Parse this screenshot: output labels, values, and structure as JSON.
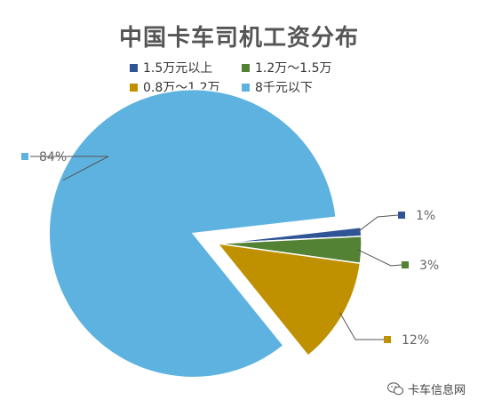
{
  "chart_data": {
    "type": "pie",
    "title": "中国卡车司机工资分布",
    "categories": [
      "1.5万元以上",
      "1.2万～1.5万",
      "0.8万～1.2万",
      "8千元以下"
    ],
    "values": [
      1,
      3,
      12,
      84
    ],
    "labels": [
      "1%",
      "3%",
      "12%",
      "84%"
    ],
    "colors": [
      "#2f5597",
      "#548235",
      "#bf9000",
      "#5eb2e0"
    ],
    "exploded": "8千元以下",
    "legend_position": "top"
  },
  "watermark": {
    "text": "卡车信息网",
    "icon": "wechat-icon"
  }
}
